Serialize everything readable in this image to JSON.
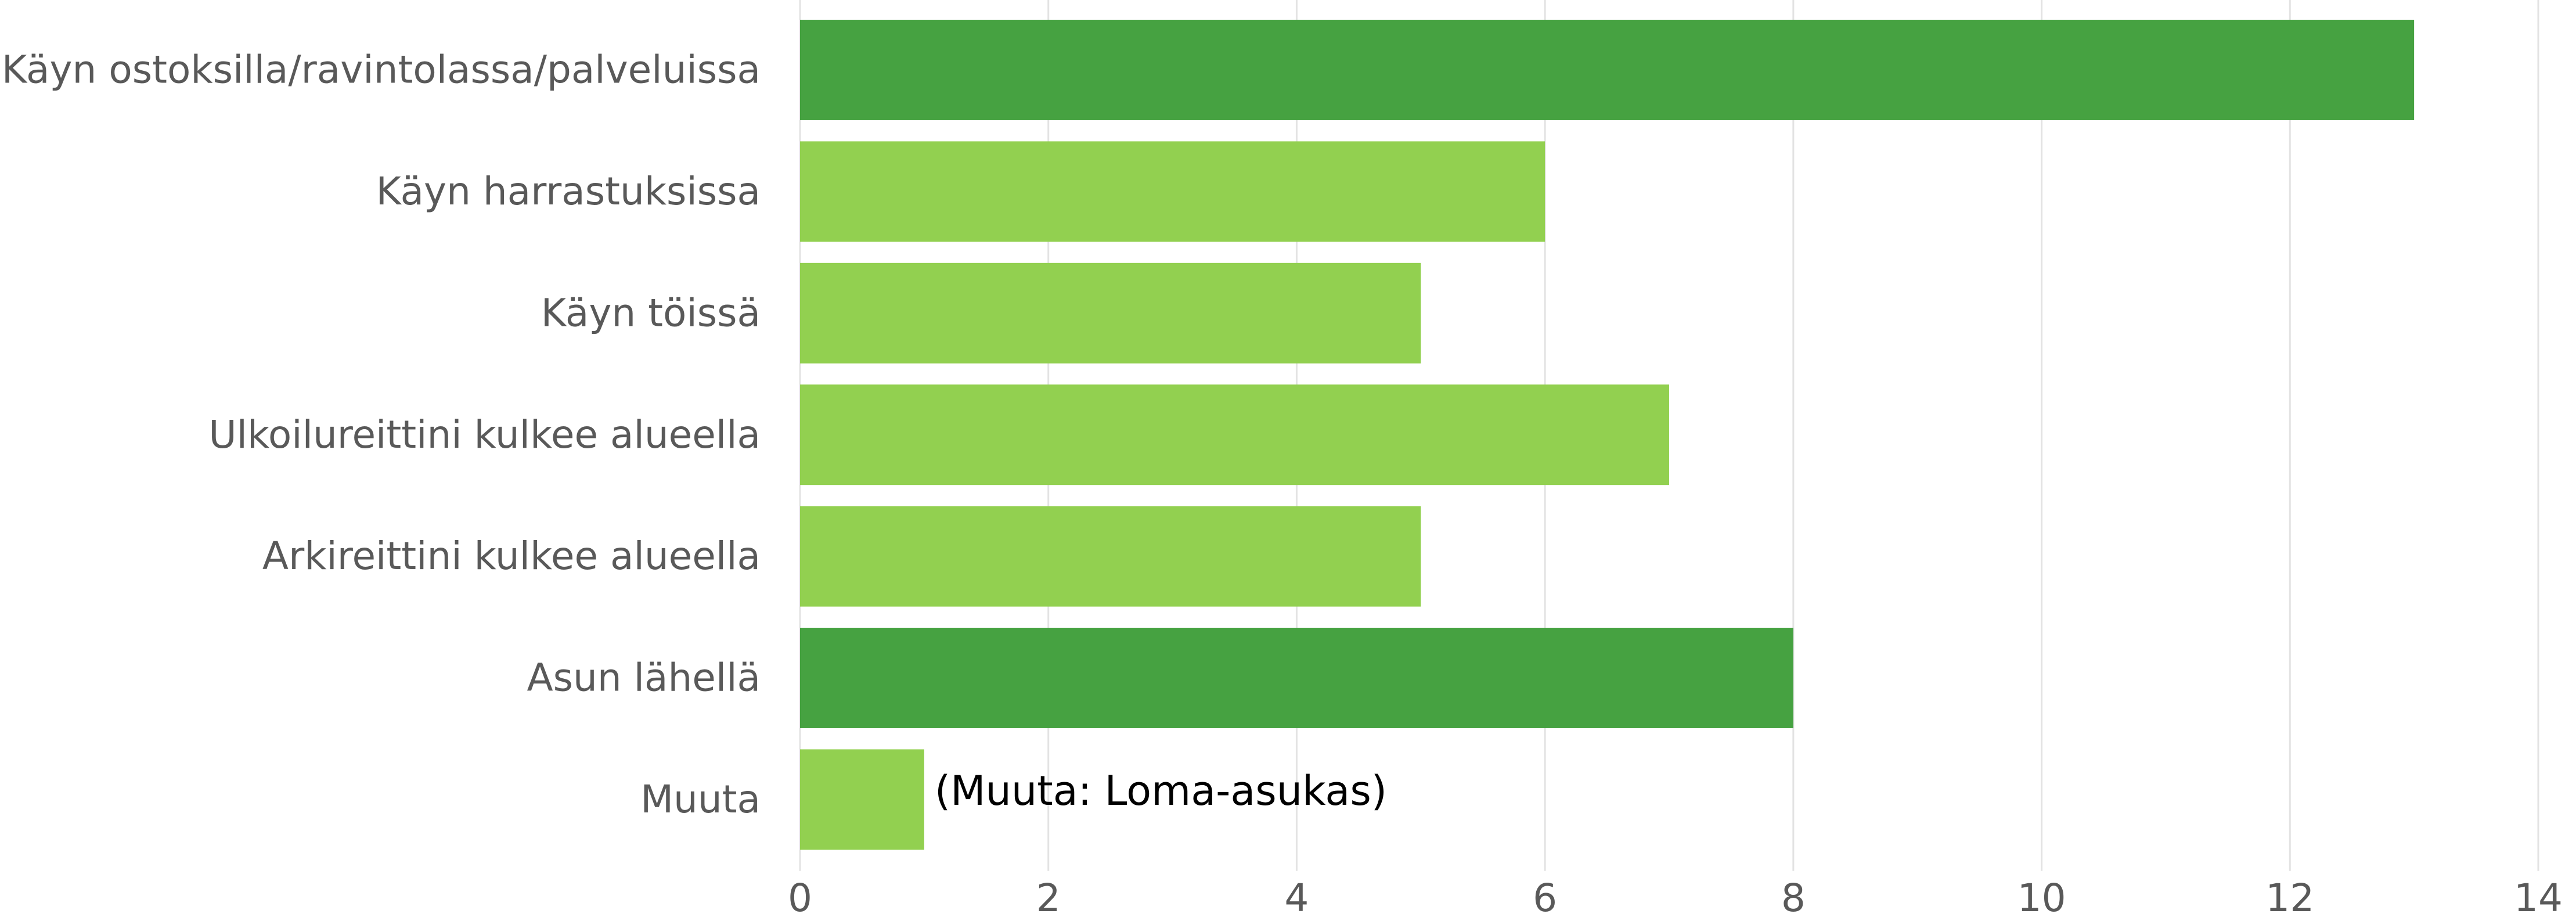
{
  "chart_data": {
    "type": "hbar",
    "categories": [
      "Käyn ostoksilla/ravintolassa/palveluissa",
      "Käyn harrastuksissa",
      "Käyn töissä",
      "Ulkoilureittini kulkee alueella",
      "Arkireittini kulkee alueella",
      "Asun lähellä",
      "Muuta"
    ],
    "values": [
      13,
      6,
      5,
      7,
      5,
      8,
      1
    ],
    "colors": [
      "#46a241",
      "#92d050",
      "#92d050",
      "#92d050",
      "#92d050",
      "#46a241",
      "#92d050"
    ],
    "annotations": [
      "(Muuta: Loma-asukas)"
    ],
    "xlim": [
      0,
      14
    ],
    "xticks": [
      0,
      2,
      4,
      6,
      8,
      10,
      12,
      14
    ],
    "grid": true
  }
}
